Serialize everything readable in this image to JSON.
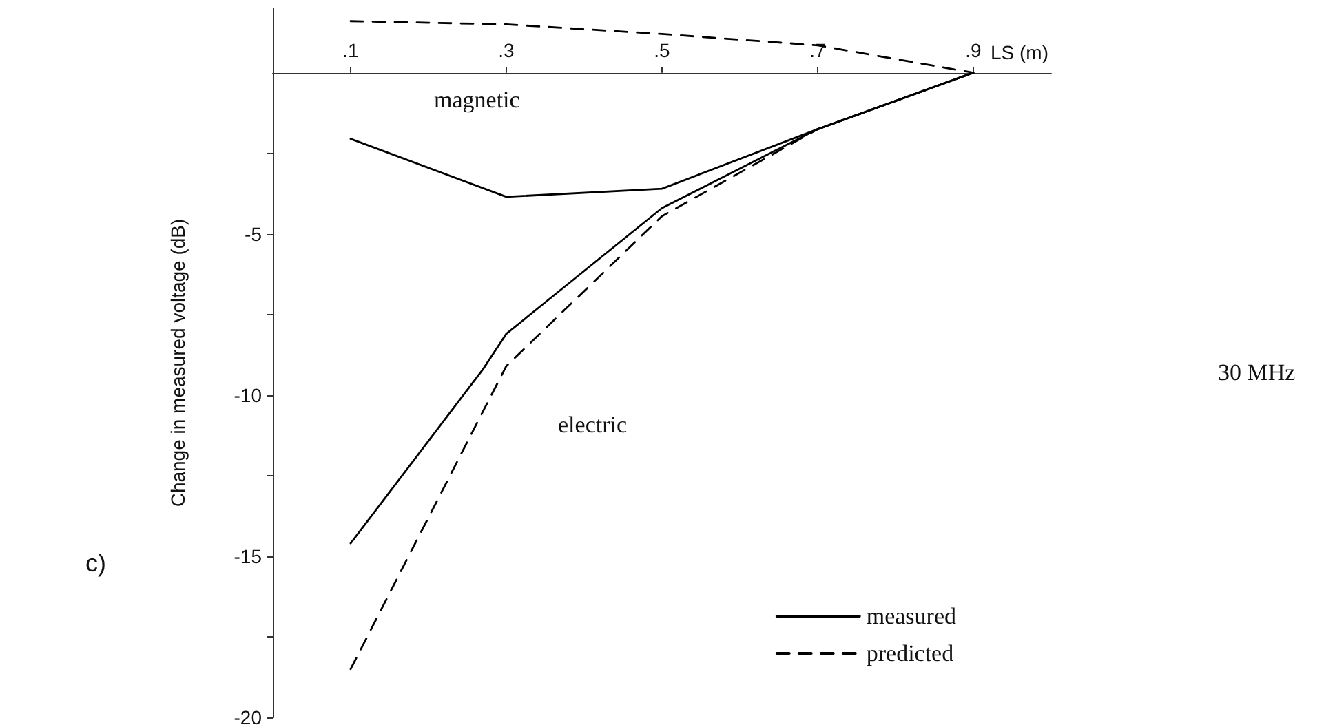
{
  "chart_data": {
    "type": "line",
    "xlabel": "LS (m)",
    "ylabel": "Change in measured voltage (dB)",
    "xlim": [
      0,
      1
    ],
    "xticks": [
      {
        "value": 0.1,
        "label": ".1"
      },
      {
        "value": 0.3,
        "label": ".3"
      },
      {
        "value": 0.5,
        "label": ".5"
      },
      {
        "value": 0.7,
        "label": ".7"
      },
      {
        "value": 0.9,
        "label": ".9"
      }
    ],
    "ylim": [
      -20,
      2
    ],
    "yticks": [
      {
        "value": -2.5,
        "label": null
      },
      -5,
      {
        "value": -7.5,
        "label": null
      },
      -10,
      {
        "value": -12.5,
        "label": null
      },
      -15,
      {
        "value": -17.5,
        "label": null
      },
      -20
    ],
    "series": [
      {
        "name": "measured",
        "color": "#000000",
        "line_style": "solid",
        "x": [
          0.1,
          0.3,
          0.5,
          0.7,
          0.9
        ],
        "values": [
          -2.05,
          -3.85,
          -3.6,
          -1.75,
          0
        ]
      },
      {
        "name": "predicted",
        "color": "#000000",
        "line_style": "dashed",
        "x": [
          0.1,
          0.3,
          0.5,
          0.7,
          0.9
        ],
        "values": [
          1.6,
          1.5,
          1.2,
          0.85,
          0
        ]
      },
      {
        "color": "#000000",
        "line_style": "solid",
        "x": [
          0.1,
          0.27,
          0.3,
          0.5,
          0.7,
          0.9
        ],
        "values": [
          -14.6,
          -9.2,
          -8.1,
          -4.2,
          -1.75,
          0
        ]
      },
      {
        "color": "#000000",
        "line_style": "dashed",
        "x": [
          0.1,
          0.3,
          0.5,
          0.7,
          0.9
        ],
        "values": [
          -18.5,
          -9.1,
          -4.45,
          -1.75,
          0
        ]
      }
    ],
    "marker": "none",
    "grid": false,
    "legend": "bottom right",
    "annotations": [
      "magnetic",
      "electric",
      "30 MHz",
      "c)"
    ]
  }
}
